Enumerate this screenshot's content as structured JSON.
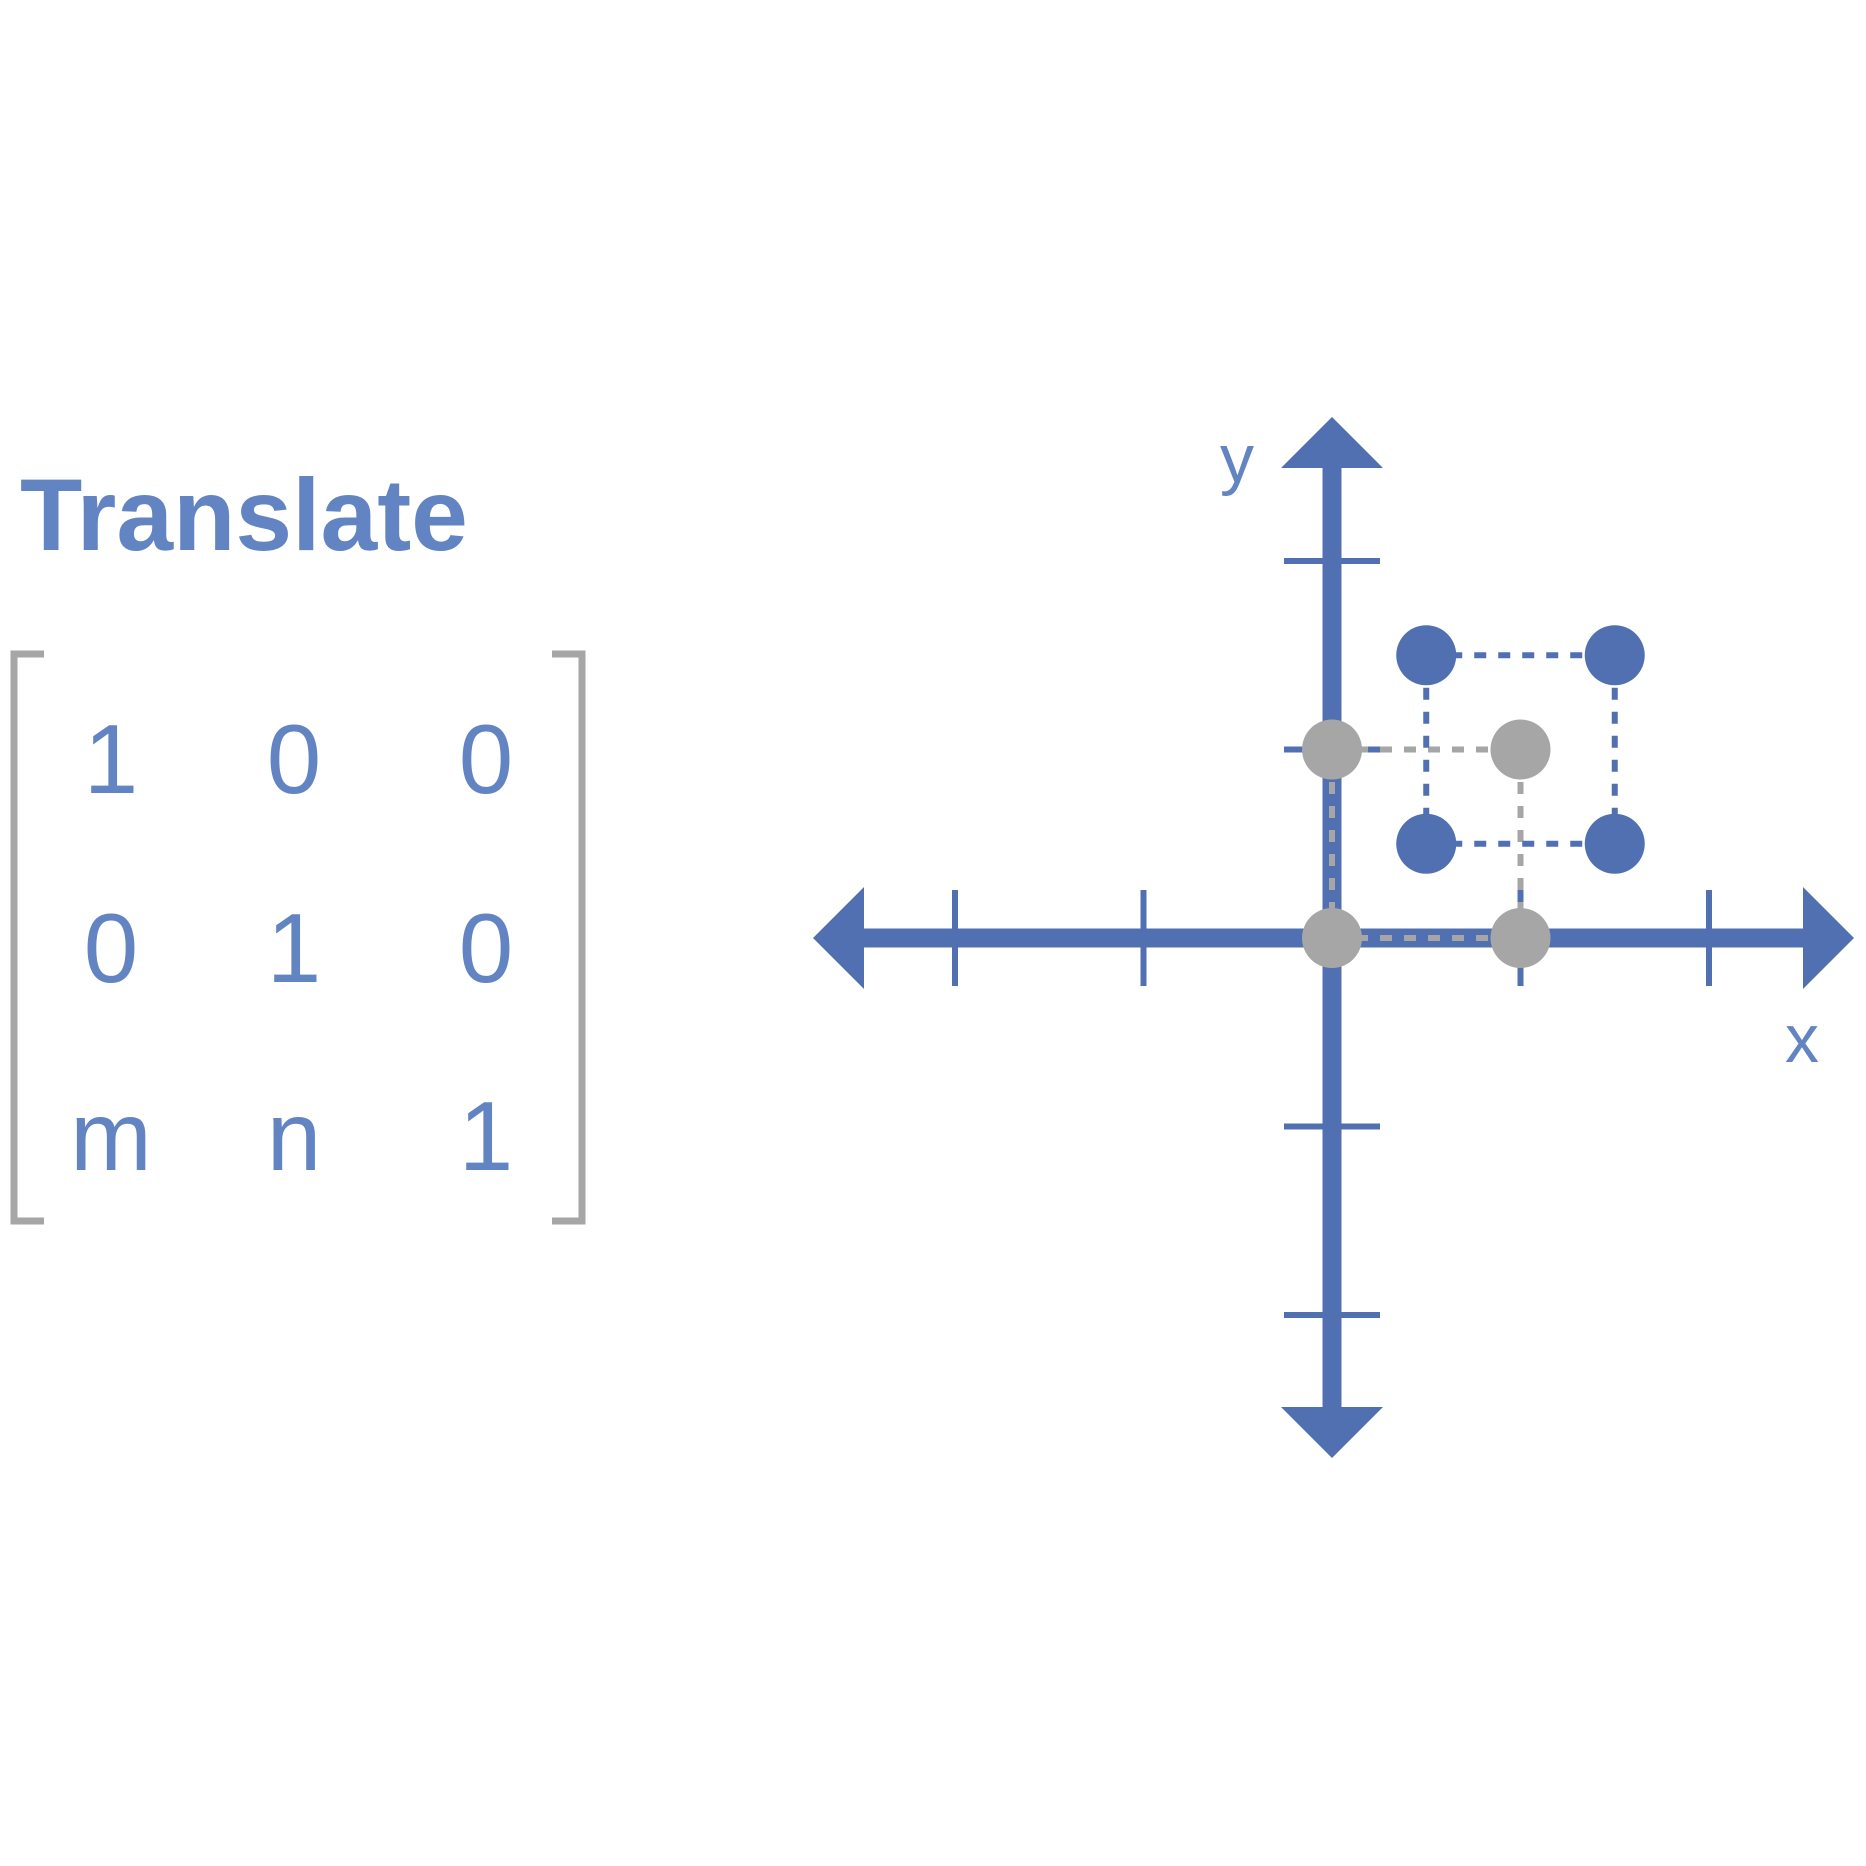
{
  "header": {
    "title": "Translate"
  },
  "matrix": {
    "rows": [
      [
        "1",
        "0",
        "0"
      ],
      [
        "0",
        "1",
        "0"
      ],
      [
        "m",
        "n",
        "1"
      ]
    ]
  },
  "axes": {
    "x_label": "x",
    "y_label": "y"
  }
}
